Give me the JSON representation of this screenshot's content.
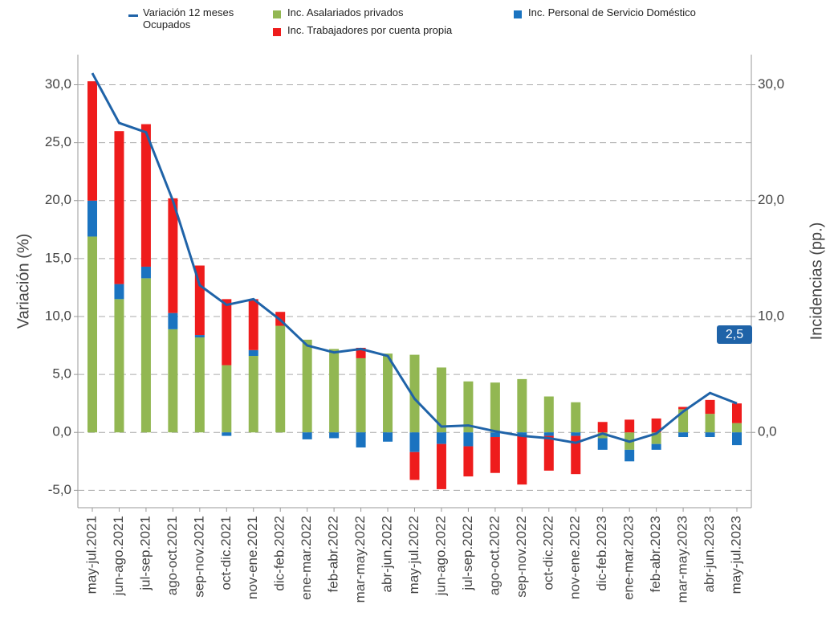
{
  "chart_data": {
    "type": "bar",
    "stacked": true,
    "ylabel": "Variación (%)",
    "y2label": "Incidencias (pp.)",
    "categories": [
      "may-jul.2021",
      "jun-ago.2021",
      "jul-sep.2021",
      "ago-oct.2021",
      "sep-nov.2021",
      "oct-dic.2021",
      "nov-ene.2021",
      "dic-feb.2022",
      "ene-mar.2022",
      "feb-abr.2022",
      "mar-may.2022",
      "abr-jun.2022",
      "may-jul.2022",
      "jun-ago.2022",
      "jul-sep.2022",
      "ago-oct.2022",
      "sep-nov.2022",
      "oct-dic.2022",
      "nov-ene.2022",
      "dic-feb.2023",
      "ene-mar.2023",
      "feb-abr.2023",
      "mar-may.2023",
      "abr-jun.2023",
      "may-jul.2023"
    ],
    "series": [
      {
        "name": "Variación 12 meses Ocupados",
        "type": "line",
        "color": "#1f63a8",
        "values": [
          31.0,
          26.7,
          25.9,
          20.0,
          12.7,
          11.0,
          11.5,
          9.7,
          7.5,
          6.9,
          7.2,
          6.6,
          2.9,
          0.5,
          0.6,
          0.1,
          -0.3,
          -0.5,
          -0.9,
          -0.1,
          -0.8,
          -0.1,
          1.8,
          3.4,
          2.5
        ],
        "value_labels": [
          null,
          null,
          null,
          null,
          null,
          null,
          null,
          null,
          null,
          null,
          null,
          null,
          null,
          null,
          null,
          null,
          null,
          null,
          null,
          null,
          null,
          null,
          null,
          null,
          "2,5"
        ]
      },
      {
        "name": "Inc. Asalariados privados",
        "color": "#92b752",
        "values": [
          16.9,
          11.5,
          13.3,
          8.9,
          8.2,
          5.8,
          6.6,
          9.2,
          8.0,
          7.2,
          6.4,
          6.8,
          6.7,
          5.6,
          4.4,
          4.3,
          4.6,
          3.1,
          2.6,
          -0.5,
          -1.5,
          -1.0,
          2.0,
          1.6,
          0.8
        ]
      },
      {
        "name": "Inc. Personal de Servicio Doméstico",
        "color": "#1a73c0",
        "values": [
          3.1,
          1.3,
          1.0,
          1.4,
          0.2,
          -0.3,
          0.5,
          0,
          -0.6,
          -0.5,
          -1.3,
          -0.8,
          -1.7,
          -1.0,
          -1.2,
          -0.4,
          -0.3,
          -0.3,
          -0.3,
          -1.0,
          -1.0,
          -0.5,
          -0.4,
          -0.4,
          -1.1
        ]
      },
      {
        "name": "Inc. Trabajadores por cuenta propia",
        "color": "#ee1c1c",
        "values": [
          10.3,
          13.2,
          12.3,
          9.9,
          6.0,
          5.7,
          4.4,
          1.2,
          0,
          0,
          0.9,
          0,
          -2.4,
          -3.9,
          -2.6,
          -3.1,
          -4.2,
          -3.0,
          -3.3,
          0.9,
          1.1,
          1.2,
          0.2,
          1.2,
          1.7
        ]
      }
    ],
    "ylim": [
      -6.5,
      32.6
    ],
    "yticks": [
      {
        "value": -5,
        "label": "-5,0"
      },
      {
        "value": 0,
        "label": "0,0"
      },
      {
        "value": 5,
        "label": "5,0"
      },
      {
        "value": 10,
        "label": "10,0"
      },
      {
        "value": 15,
        "label": "15,0"
      },
      {
        "value": 20,
        "label": "20,0"
      },
      {
        "value": 25,
        "label": "25,0"
      },
      {
        "value": 30,
        "label": "30,0"
      }
    ],
    "y2lim": [
      -6.5,
      32.6
    ],
    "y2ticks": [
      {
        "value": 0,
        "label": "0,0"
      },
      {
        "value": 10,
        "label": "10,0"
      },
      {
        "value": 20,
        "label": "20,0"
      },
      {
        "value": 30,
        "label": "30,0"
      }
    ],
    "grid": true
  }
}
